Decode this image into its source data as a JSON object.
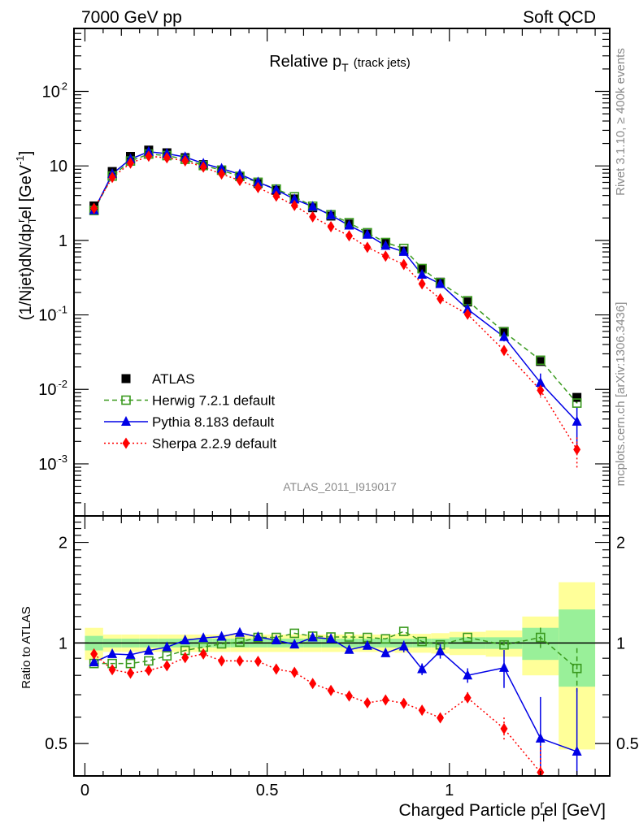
{
  "header": {
    "left": "7000 GeV pp",
    "right": "Soft QCD"
  },
  "side_text": {
    "rivet": "Rivet 3.1.10, ≥ 400k events",
    "mcplots": "mcplots.cern.ch [arXiv:1306.3436]"
  },
  "colors": {
    "atlas": "#000000",
    "herwig": "#3a9a1e",
    "pythia": "#0000e6",
    "sherpa": "#ff0000",
    "band_total": "#ffff99",
    "band_stat": "#99f099"
  },
  "chart_data": {
    "type": "line",
    "title": {
      "main": "Relative p",
      "sub": "T",
      "extra": "(track jets)"
    },
    "analysis_id": "ATLAS_2011_I919017",
    "xlabel": {
      "pre": "Charged Particle p",
      "sub": "T",
      "sup": "r",
      "post": "el [GeV]"
    },
    "ylabel": {
      "pre": "(1/Njet)dN/dp",
      "sub": "T",
      "sup": "r",
      "post": "el [GeV",
      "unit_exp": "-1",
      "close": "]"
    },
    "ratio_ylabel": "Ratio to ATLAS",
    "xlim": [
      -0.03,
      1.44
    ],
    "ylim": [
      0.0002,
      700
    ],
    "yscale": "log",
    "ratio_ylim": [
      0.4,
      2.4
    ],
    "ratio_yscale": "log",
    "x_ticks": [
      {
        "v": 0,
        "label": "0"
      },
      {
        "v": 0.5,
        "label": "0.5"
      },
      {
        "v": 1,
        "label": "1"
      }
    ],
    "y_ticks": [
      {
        "v": 0.001,
        "label": "10^-3"
      },
      {
        "v": 0.01,
        "label": "10^-2"
      },
      {
        "v": 0.1,
        "label": "10^-1"
      },
      {
        "v": 1,
        "label": "1"
      },
      {
        "v": 10,
        "label": "10"
      },
      {
        "v": 100,
        "label": "10^2"
      }
    ],
    "ratio_ticks": [
      {
        "v": 0.5,
        "label": "0.5"
      },
      {
        "v": 1,
        "label": "1"
      },
      {
        "v": 2,
        "label": "2"
      }
    ],
    "legend_position": "bottom-left",
    "bin_edges": [
      0,
      0.05,
      0.1,
      0.15,
      0.2,
      0.25,
      0.3,
      0.35,
      0.4,
      0.45,
      0.5,
      0.55,
      0.6,
      0.65,
      0.7,
      0.75,
      0.8,
      0.85,
      0.9,
      0.95,
      1.0,
      1.1,
      1.2,
      1.3,
      1.4
    ],
    "x": [
      0.025,
      0.075,
      0.125,
      0.175,
      0.225,
      0.275,
      0.325,
      0.375,
      0.425,
      0.475,
      0.525,
      0.575,
      0.625,
      0.675,
      0.725,
      0.775,
      0.825,
      0.875,
      0.925,
      0.975,
      1.05,
      1.15,
      1.25,
      1.35
    ],
    "data": {
      "name": "ATLAS",
      "values": [
        2.9,
        8.4,
        13.4,
        16.3,
        15.0,
        12.9,
        10.4,
        8.8,
        7.2,
        5.8,
        4.7,
        3.6,
        2.74,
        2.12,
        1.66,
        1.22,
        0.91,
        0.72,
        0.415,
        0.275,
        0.149,
        0.06,
        0.0237,
        0.0078
      ],
      "stat_rel_err": [
        0.05,
        0.03,
        0.03,
        0.03,
        0.03,
        0.03,
        0.03,
        0.03,
        0.03,
        0.03,
        0.03,
        0.03,
        0.03,
        0.03,
        0.03,
        0.03,
        0.03,
        0.03,
        0.03,
        0.03,
        0.04,
        0.04,
        0.11,
        0.26
      ],
      "total_rel_err": [
        0.11,
        0.06,
        0.06,
        0.06,
        0.06,
        0.06,
        0.06,
        0.06,
        0.06,
        0.06,
        0.06,
        0.06,
        0.06,
        0.06,
        0.06,
        0.06,
        0.06,
        0.065,
        0.065,
        0.07,
        0.08,
        0.09,
        0.2,
        0.52
      ]
    },
    "series": [
      {
        "name": "Herwig 7.2.1 default",
        "style": "dashed",
        "marker": "open-square",
        "ratio": [
          0.868,
          0.868,
          0.868,
          0.884,
          0.915,
          0.95,
          0.972,
          0.994,
          1.006,
          1.039,
          1.039,
          1.069,
          1.048,
          1.042,
          1.042,
          1.039,
          1.029,
          1.083,
          1.01,
          0.987,
          1.039,
          0.987,
          1.039,
          0.839
        ],
        "rel_err": [
          0.01,
          0.01,
          0.01,
          0.01,
          0.01,
          0.01,
          0.01,
          0.01,
          0.01,
          0.01,
          0.01,
          0.01,
          0.01,
          0.01,
          0.01,
          0.01,
          0.01,
          0.015,
          0.015,
          0.02,
          0.02,
          0.03,
          0.07,
          0.15
        ]
      },
      {
        "name": "Pythia 8.183 default",
        "style": "solid",
        "marker": "triangle",
        "ratio": [
          0.876,
          0.927,
          0.922,
          0.949,
          0.972,
          1.019,
          1.035,
          1.045,
          1.073,
          1.042,
          1.019,
          0.99,
          1.039,
          1.029,
          0.954,
          0.981,
          0.932,
          0.977,
          0.835,
          0.945,
          0.8,
          0.843,
          0.518,
          0.473
        ],
        "rel_err": [
          0.01,
          0.01,
          0.01,
          0.01,
          0.01,
          0.01,
          0.01,
          0.01,
          0.01,
          0.01,
          0.01,
          0.01,
          0.01,
          0.02,
          0.02,
          0.02,
          0.02,
          0.04,
          0.04,
          0.05,
          0.05,
          0.13,
          0.33,
          0.55
        ]
      },
      {
        "name": "Sherpa 2.2.9 default",
        "style": "dotted",
        "marker": "diamond",
        "ratio": [
          0.927,
          0.832,
          0.812,
          0.828,
          0.855,
          0.904,
          0.927,
          0.884,
          0.884,
          0.881,
          0.835,
          0.817,
          0.756,
          0.721,
          0.694,
          0.662,
          0.675,
          0.66,
          0.629,
          0.597,
          0.685,
          0.554,
          0.41,
          0.2
        ],
        "rel_err": [
          0.01,
          0.01,
          0.01,
          0.01,
          0.01,
          0.01,
          0.01,
          0.01,
          0.01,
          0.01,
          0.01,
          0.01,
          0.01,
          0.01,
          0.015,
          0.015,
          0.02,
          0.02,
          0.03,
          0.03,
          0.04,
          0.08,
          0.2,
          0.45
        ]
      }
    ]
  }
}
